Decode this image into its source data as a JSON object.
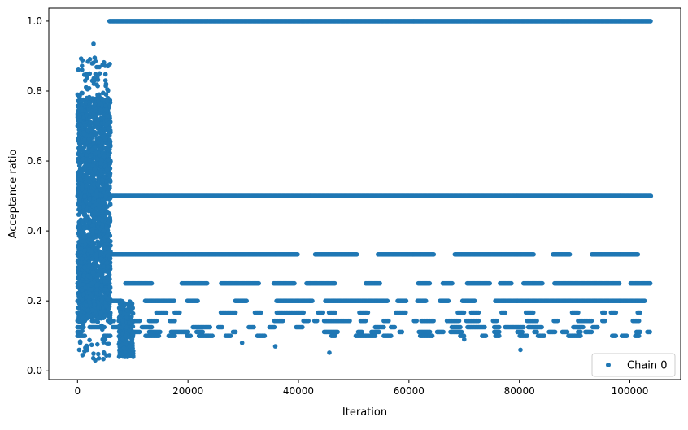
{
  "chart_data": {
    "type": "scatter",
    "title": "",
    "xlabel": "Iteration",
    "ylabel": "Acceptance ratio",
    "xlim": [
      -5200,
      109200
    ],
    "ylim": [
      -0.025,
      1.037
    ],
    "xticks": [
      0,
      20000,
      40000,
      60000,
      80000,
      100000
    ],
    "xtick_labels": [
      "0",
      "20000",
      "40000",
      "60000",
      "80000",
      "100000"
    ],
    "yticks": [
      0.0,
      0.2,
      0.4,
      0.6,
      0.8,
      1.0
    ],
    "ytick_labels": [
      "0.0",
      "0.2",
      "0.4",
      "0.6",
      "0.8",
      "1.0"
    ],
    "grid": false,
    "legend_position": "lower-right",
    "series": [
      {
        "name": "Chain 0",
        "color": "#1f77b4",
        "marker": "circle",
        "bands": [
          {
            "y": 1.0,
            "x_range": [
              5800,
              103800
            ],
            "density": "continuous"
          },
          {
            "y": 0.5,
            "x_range": [
              0,
              103800
            ],
            "density": "continuous"
          },
          {
            "y": 0.3333,
            "x_range": [
              0,
              103800
            ],
            "density": "near-continuous with gaps"
          },
          {
            "y": 0.25,
            "x_range": [
              0,
              103800
            ],
            "density": "dashed with gaps"
          },
          {
            "y": 0.2,
            "x_range": [
              0,
              103800
            ],
            "density": "dashed with gaps"
          },
          {
            "y": 0.1667,
            "x_range": [
              0,
              103800
            ],
            "density": "sparse clusters"
          },
          {
            "y": 0.1429,
            "x_range": [
              0,
              103800
            ],
            "density": "sparse clusters"
          },
          {
            "y": 0.125,
            "x_range": [
              0,
              103800
            ],
            "density": "sparse clusters"
          },
          {
            "y": 0.1111,
            "x_range": [
              0,
              103800
            ],
            "density": "sparse clusters"
          },
          {
            "y": 0.1,
            "x_range": [
              0,
              103800
            ],
            "density": "sparse clusters"
          }
        ],
        "burn_in_region": {
          "x_range": [
            0,
            6000
          ],
          "y_range": [
            0.03,
            0.94
          ],
          "dense_y_range": [
            0.15,
            0.78
          ],
          "notable_points": [
            [
              2900,
              0.935
            ],
            [
              3100,
              0.895
            ],
            [
              800,
              0.872
            ],
            [
              5000,
              0.872
            ],
            [
              2200,
              0.85
            ],
            [
              3600,
              0.84
            ],
            [
              1400,
              0.83
            ],
            [
              300,
              0.06
            ],
            [
              900,
              0.045
            ],
            [
              3200,
              0.03
            ],
            [
              4800,
              0.05
            ]
          ]
        },
        "low_points": [
          [
            8600,
            0.04
          ],
          [
            9100,
            0.045
          ],
          [
            29800,
            0.08
          ],
          [
            35800,
            0.07
          ],
          [
            45600,
            0.052
          ],
          [
            80200,
            0.06
          ],
          [
            70000,
            0.09
          ],
          [
            62000,
            0.11
          ]
        ]
      }
    ]
  }
}
